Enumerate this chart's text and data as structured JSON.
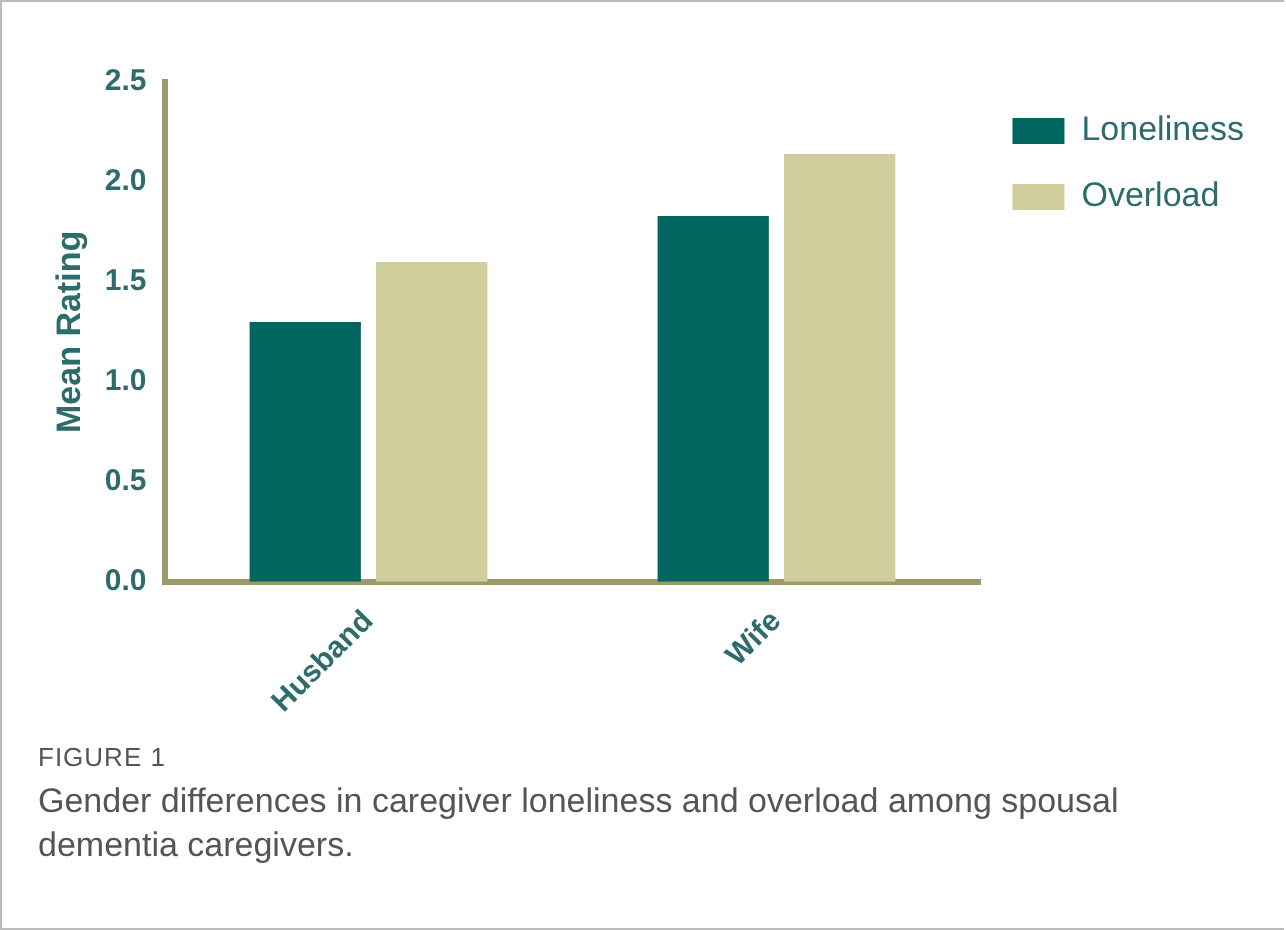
{
  "chart_data": {
    "type": "bar",
    "ylabel": "Mean Rating",
    "categories": [
      "Husband",
      "Wife"
    ],
    "series": [
      {
        "name": "Loneliness",
        "color": "#00665f",
        "values": [
          1.3,
          1.83
        ]
      },
      {
        "name": "Overload",
        "color": "#cfcd9b",
        "values": [
          1.6,
          2.14
        ]
      }
    ],
    "ylim": [
      0,
      2.5
    ],
    "yticks": [
      {
        "value": 0,
        "label": "0.0"
      },
      {
        "value": 0.5,
        "label": "0.5"
      },
      {
        "value": 1,
        "label": "1.0"
      },
      {
        "value": 1.5,
        "label": "1.5"
      },
      {
        "value": 2,
        "label": "2.0"
      },
      {
        "value": 2.5,
        "label": "2.5"
      }
    ],
    "grid": false,
    "legend": "top right",
    "annotations": [
      "FIGURE 1",
      "Gender differences in caregiver loneliness and overload among spousal dementia caregivers."
    ]
  }
}
